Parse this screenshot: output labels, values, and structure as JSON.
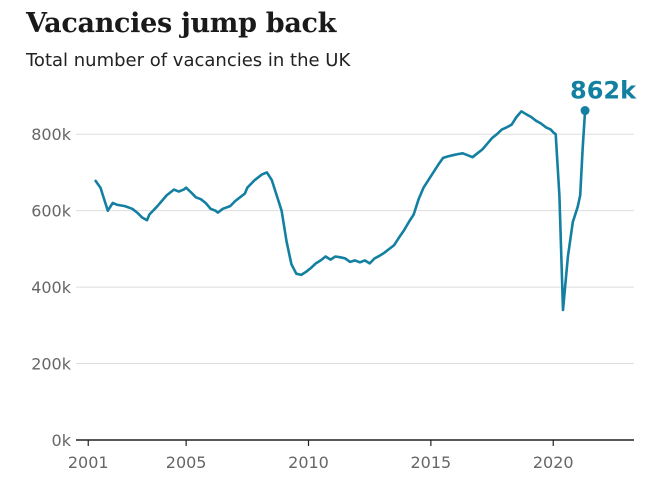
{
  "header": {
    "title": "Vacancies jump back",
    "subtitle": "Total number of vacancies in the UK"
  },
  "colors": {
    "series": "#1380a1",
    "grid": "#dddddd",
    "axis": "#222222",
    "tick_text": "#666666"
  },
  "chart_data": {
    "type": "line",
    "title": "Vacancies jump back",
    "subtitle": "Total number of vacancies in the UK",
    "xlabel": "",
    "ylabel": "",
    "xlim": [
      2000.5,
      2023.3
    ],
    "ylim": [
      0,
      900000
    ],
    "grid": true,
    "legend": "none",
    "x_ticks": [
      {
        "value": 2001,
        "label": "2001"
      },
      {
        "value": 2005,
        "label": "2005"
      },
      {
        "value": 2010,
        "label": "2010"
      },
      {
        "value": 2015,
        "label": "2015"
      },
      {
        "value": 2020,
        "label": "2020"
      }
    ],
    "y_ticks": [
      {
        "value": 0,
        "label": "0k"
      },
      {
        "value": 200000,
        "label": "200k"
      },
      {
        "value": 400000,
        "label": "400k"
      },
      {
        "value": 600000,
        "label": "600k"
      },
      {
        "value": 800000,
        "label": "800k"
      }
    ],
    "annotation": {
      "x": 2021.3,
      "y": 862000,
      "label": "862k"
    },
    "series": [
      {
        "x": [
          2001.3,
          2001.5,
          2001.6,
          2001.8,
          2002.0,
          2002.2,
          2002.5,
          2002.8,
          2003.0,
          2003.2,
          2003.4,
          2003.5,
          2003.8,
          2004.0,
          2004.2,
          2004.5,
          2004.7,
          2004.9,
          2005.0,
          2005.2,
          2005.4,
          2005.6,
          2005.8,
          2006.0,
          2006.2,
          2006.3,
          2006.5,
          2006.8,
          2007.0,
          2007.2,
          2007.4,
          2007.5,
          2007.8,
          2008.0,
          2008.1,
          2008.3,
          2008.5,
          2008.7,
          2008.9,
          2009.1,
          2009.3,
          2009.5,
          2009.7,
          2009.9,
          2010.1,
          2010.3,
          2010.5,
          2010.7,
          2010.9,
          2011.1,
          2011.3,
          2011.5,
          2011.7,
          2011.9,
          2012.1,
          2012.3,
          2012.5,
          2012.7,
          2012.9,
          2013.1,
          2013.3,
          2013.5,
          2013.7,
          2013.9,
          2014.1,
          2014.3,
          2014.5,
          2014.7,
          2014.9,
          2015.1,
          2015.3,
          2015.5,
          2015.7,
          2015.9,
          2016.1,
          2016.3,
          2016.5,
          2016.7,
          2016.9,
          2017.1,
          2017.3,
          2017.5,
          2017.7,
          2017.9,
          2018.1,
          2018.3,
          2018.5,
          2018.7,
          2018.9,
          2019.1,
          2019.3,
          2019.5,
          2019.7,
          2019.9,
          2020.0,
          2020.1,
          2020.25,
          2020.4,
          2020.6,
          2020.8,
          2021.0,
          2021.1,
          2021.2,
          2021.3
        ],
        "y": [
          678000,
          660000,
          640000,
          600000,
          620000,
          615000,
          612000,
          605000,
          595000,
          582000,
          575000,
          590000,
          610000,
          625000,
          640000,
          655000,
          650000,
          655000,
          660000,
          648000,
          635000,
          630000,
          620000,
          605000,
          600000,
          595000,
          605000,
          612000,
          625000,
          635000,
          645000,
          660000,
          680000,
          690000,
          695000,
          700000,
          680000,
          640000,
          600000,
          520000,
          460000,
          435000,
          432000,
          440000,
          450000,
          462000,
          470000,
          480000,
          472000,
          480000,
          478000,
          475000,
          466000,
          470000,
          465000,
          470000,
          462000,
          475000,
          482000,
          490000,
          500000,
          510000,
          530000,
          548000,
          570000,
          590000,
          630000,
          660000,
          680000,
          700000,
          720000,
          738000,
          742000,
          745000,
          748000,
          750000,
          745000,
          740000,
          750000,
          760000,
          775000,
          790000,
          800000,
          812000,
          818000,
          825000,
          845000,
          860000,
          852000,
          845000,
          835000,
          828000,
          818000,
          812000,
          805000,
          800000,
          640000,
          340000,
          480000,
          570000,
          610000,
          640000,
          760000,
          862000
        ]
      }
    ]
  }
}
